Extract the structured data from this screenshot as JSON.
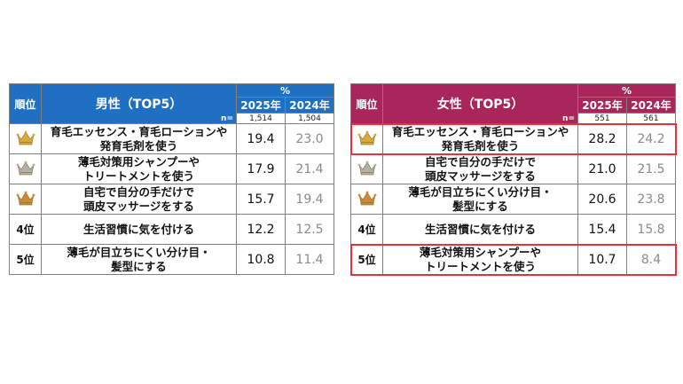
{
  "men": {
    "rank_header": "順位",
    "title": "男性（TOP5）",
    "percent_label": "%",
    "n_label": "n=",
    "years": [
      "2025年",
      "2024年"
    ],
    "n_values": [
      "1,514",
      "1,504"
    ],
    "rows": [
      {
        "rank": "",
        "crown": "gold",
        "item": [
          "育毛エッセンス・育毛ローションや",
          "発育毛剤を使う"
        ],
        "v2025": "19.4",
        "v2024": "23.0"
      },
      {
        "rank": "",
        "crown": "silver",
        "item": [
          "薄毛対策用シャンプーや",
          "トリートメントを使う"
        ],
        "v2025": "17.9",
        "v2024": "21.4"
      },
      {
        "rank": "",
        "crown": "bronze",
        "item": [
          "自宅で自分の手だけで",
          "頭皮マッサージをする"
        ],
        "v2025": "15.7",
        "v2024": "19.4"
      },
      {
        "rank": "4位",
        "crown": "",
        "item": [
          "生活習慣に気を付ける"
        ],
        "v2025": "12.2",
        "v2024": "12.5"
      },
      {
        "rank": "5位",
        "crown": "",
        "item": [
          "薄毛が目立ちにくい分け目・",
          "髪型にする"
        ],
        "v2025": "10.8",
        "v2024": "11.4"
      }
    ]
  },
  "women": {
    "rank_header": "順位",
    "title": "女性（TOP5）",
    "percent_label": "%",
    "n_label": "n=",
    "years": [
      "2025年",
      "2024年"
    ],
    "n_values": [
      "551",
      "561"
    ],
    "rows": [
      {
        "rank": "",
        "crown": "gold",
        "item": [
          "育毛エッセンス・育毛ローションや",
          "発育毛剤を使う"
        ],
        "v2025": "28.2",
        "v2024": "24.2",
        "highlight": true
      },
      {
        "rank": "",
        "crown": "silver",
        "item": [
          "自宅で自分の手だけで",
          "頭皮マッサージをする"
        ],
        "v2025": "21.0",
        "v2024": "21.5"
      },
      {
        "rank": "",
        "crown": "bronze",
        "item": [
          "薄毛が目立ちにくい分け目・",
          "髪型にする"
        ],
        "v2025": "20.6",
        "v2024": "23.8"
      },
      {
        "rank": "4位",
        "crown": "",
        "item": [
          "生活習慣に気を付ける"
        ],
        "v2025": "15.4",
        "v2024": "15.8"
      },
      {
        "rank": "5位",
        "crown": "",
        "item": [
          "薄毛対策用シャンプーや",
          "トリートメントを使う"
        ],
        "v2025": "10.7",
        "v2024": "8.4",
        "highlight": true
      }
    ]
  },
  "colors": {
    "men_header": "#1f6fc3",
    "women_header": "#a8265a",
    "highlight": "#e8303a",
    "gold": "#d8a93a",
    "silver": "#b0b0b0",
    "bronze": "#c98a3a"
  },
  "icons": {
    "crown": "crown-icon"
  }
}
